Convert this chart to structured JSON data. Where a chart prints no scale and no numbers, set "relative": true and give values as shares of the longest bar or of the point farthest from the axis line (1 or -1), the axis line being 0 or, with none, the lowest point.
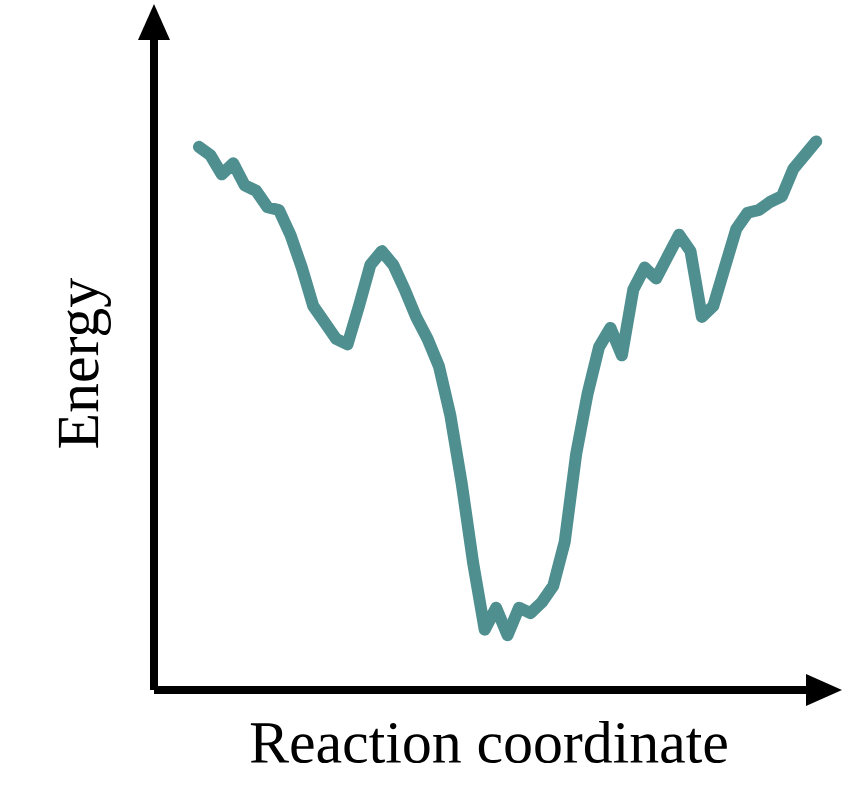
{
  "chart_data": {
    "type": "line",
    "relative": true,
    "xlabel": "Reaction coordinate",
    "ylabel": "Energy",
    "color": "#4f8f8f",
    "marker": "none",
    "line_style": "solid",
    "categories": [
      null,
      null,
      null,
      null,
      null,
      null,
      null,
      null,
      null,
      null,
      null,
      null,
      null,
      null,
      null,
      null,
      null,
      null,
      null,
      null,
      null,
      null,
      null,
      null,
      null,
      null,
      null,
      null,
      null,
      null,
      null,
      null,
      null,
      null,
      null,
      null,
      null,
      null,
      null,
      null,
      null,
      null,
      null,
      null,
      null,
      null,
      null,
      null,
      null,
      null,
      null,
      null,
      null,
      null,
      null
    ],
    "values": [
      0.99,
      0.975,
      0.94,
      0.96,
      0.92,
      0.91,
      0.88,
      0.875,
      0.83,
      0.77,
      0.7,
      0.67,
      0.64,
      0.63,
      0.7,
      0.775,
      0.8,
      0.775,
      0.73,
      0.68,
      0.64,
      0.59,
      0.5,
      0.375,
      0.23,
      0.11,
      0.15,
      0.1,
      0.15,
      0.14,
      0.16,
      0.19,
      0.27,
      0.43,
      0.54,
      0.625,
      0.66,
      0.61,
      0.73,
      0.77,
      0.75,
      0.79,
      0.83,
      0.8,
      0.68,
      0.7,
      0.77,
      0.84,
      0.87,
      0.875,
      0.89,
      0.9,
      0.95,
      0.975,
      1.0
    ]
  }
}
